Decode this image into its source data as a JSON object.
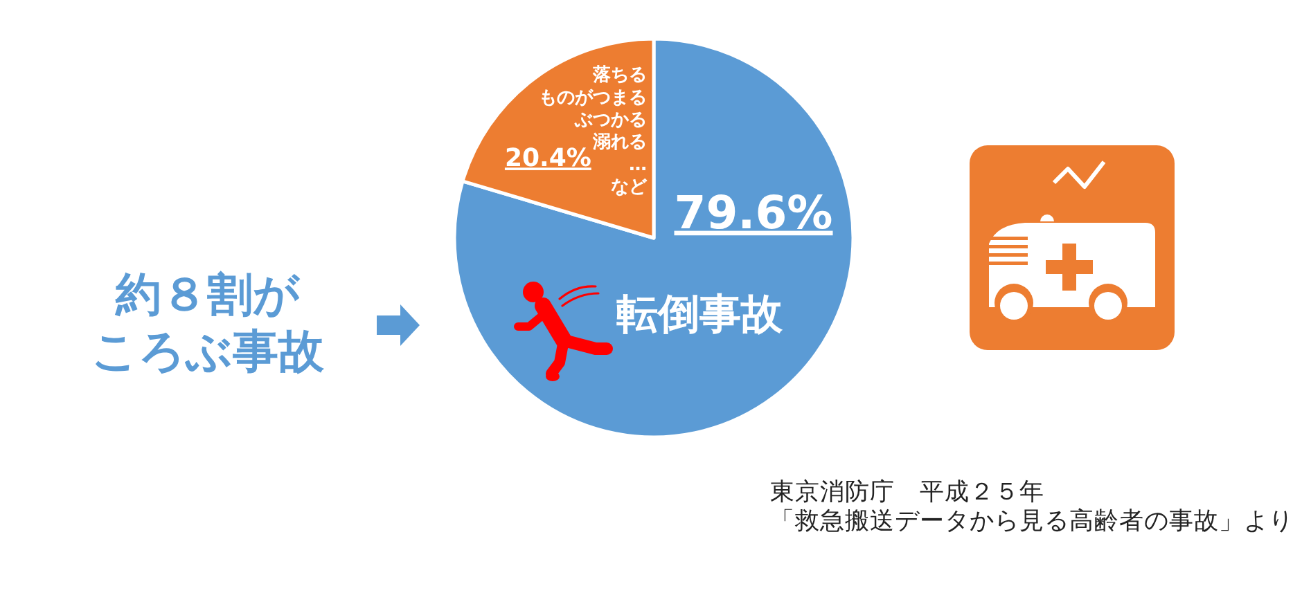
{
  "chart_data": {
    "type": "pie",
    "categories": [
      "転倒事故",
      "落ちるものがつまるぶつかる溺れる…など"
    ],
    "values": [
      79.6,
      20.4
    ],
    "colors": [
      "#5b9bd5",
      "#ed7d31"
    ],
    "value_labels": [
      "79.6%",
      "20.4%"
    ],
    "annotations": [
      "約８割がころぶ事故",
      "東京消防庁　平成２５年「救急搬送データから見る高齢者の事故」より"
    ]
  }
}
